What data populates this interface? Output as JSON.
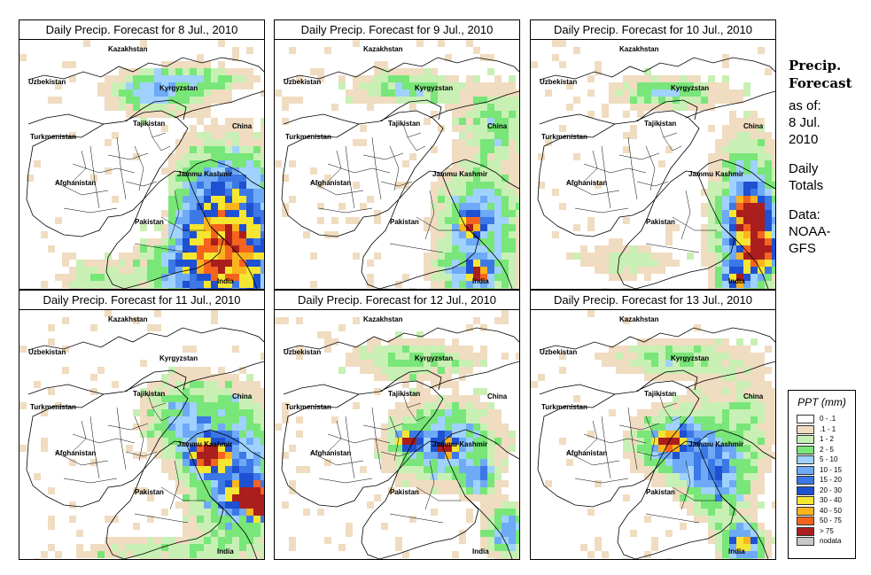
{
  "panels": [
    {
      "title": "Daily Precip. Forecast for  8 Jul., 2010",
      "scenario": 0
    },
    {
      "title": "Daily Precip. Forecast for  9 Jul., 2010",
      "scenario": 1
    },
    {
      "title": "Daily Precip. Forecast for  10 Jul., 2010",
      "scenario": 2
    },
    {
      "title": "Daily Precip. Forecast for  11 Jul., 2010",
      "scenario": 3
    },
    {
      "title": "Daily Precip. Forecast for  12 Jul., 2010",
      "scenario": 4
    },
    {
      "title": "Daily Precip. Forecast for  13 Jul., 2010",
      "scenario": 5
    }
  ],
  "map_labels": {
    "kazakhstan": "Kazakhstan",
    "uzbekistan": "Uzbekistan",
    "kyrgyzstan": "Kyrgyzstan",
    "tajikistan": "Tajikistan",
    "china": "China",
    "turkmenistan": "Turkmenistan",
    "afghanistan": "Afghanistan",
    "jammu_kashmir": "Jammu Kashmir",
    "pakistan": "Pakistan",
    "india": "India"
  },
  "side": {
    "title_line1": "Precip.",
    "title_line2": "Forecast",
    "asof_line1": "as of:",
    "asof_line2": "8 Jul.",
    "asof_line3": "2010",
    "totals_line1": "Daily",
    "totals_line2": "Totals",
    "data_line1": "Data:",
    "data_line2": "NOAA-",
    "data_line3": "GFS"
  },
  "legend": {
    "title": "PPT (mm)",
    "items": [
      {
        "label": "0 - .1",
        "color": "#ffffff"
      },
      {
        "label": ".1 - 1",
        "color": "#f0dcc0"
      },
      {
        "label": "1 - 2",
        "color": "#c8f0b4"
      },
      {
        "label": "2 - 5",
        "color": "#78e678"
      },
      {
        "label": "5 - 10",
        "color": "#a0d2ff"
      },
      {
        "label": "10 - 15",
        "color": "#6eaaf5"
      },
      {
        "label": "15 - 20",
        "color": "#3c78e6"
      },
      {
        "label": "20 - 30",
        "color": "#1e50d2"
      },
      {
        "label": "30 - 40",
        "color": "#f5e632"
      },
      {
        "label": "40 - 50",
        "color": "#fab41e"
      },
      {
        "label": "50 - 75",
        "color": "#f5641e"
      },
      {
        "label": "> 75",
        "color": "#aa1e1e"
      },
      {
        "label": "nodata",
        "color": "#c8c8c8"
      }
    ]
  }
}
